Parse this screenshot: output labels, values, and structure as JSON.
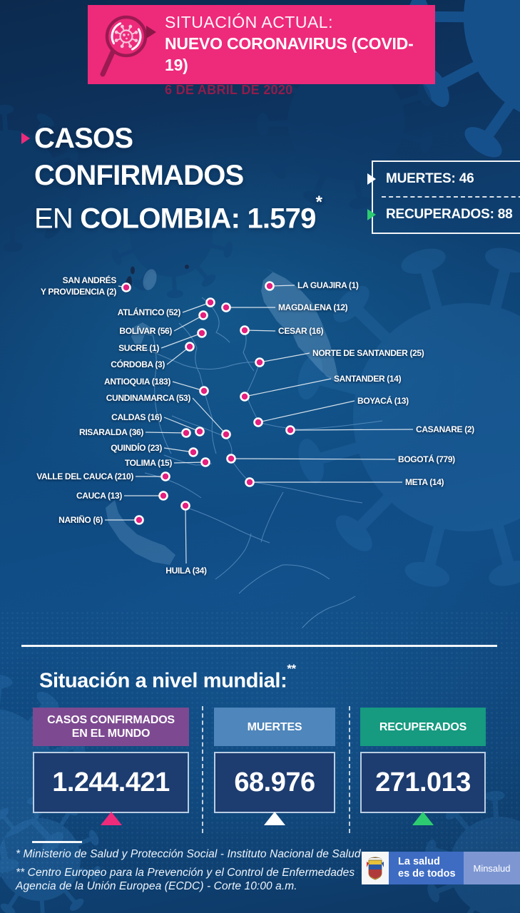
{
  "header": {
    "kicker": "SITUACIÓN ACTUAL:",
    "title": "NUEVO CORONAVIRUS (COVID-19)",
    "date": "6 DE ABRIL DE 2020"
  },
  "confirmed": {
    "line1": "CASOS",
    "line2": "CONFIRMADOS",
    "line3_prefix": "EN ",
    "line3_bold": "COLOMBIA: 1.579",
    "asterisk": "*"
  },
  "side_stats": {
    "deaths": "MUERTES: 46",
    "recovered": "RECUPERADOS: 88"
  },
  "map": {
    "country": "Colombia",
    "departments": [
      {
        "id": "san-andres-y-providencia",
        "name": "SAN ANDRÉS\nY PROVIDENCIA",
        "cases": 2,
        "dot": [
          177,
          403
        ],
        "label": [
          163,
          401
        ],
        "side": "left"
      },
      {
        "id": "la-guajira",
        "name": "LA GUAJIRA",
        "cases": 1,
        "dot": [
          378,
          401
        ],
        "label": [
          417,
          400
        ],
        "side": "right"
      },
      {
        "id": "atlantico",
        "name": "ATLÁNTICO",
        "cases": 52,
        "dot": [
          295,
          424
        ],
        "label": [
          253,
          438
        ],
        "side": "left"
      },
      {
        "id": "magdalena",
        "name": "MAGDALENA",
        "cases": 12,
        "dot": [
          317,
          431
        ],
        "label": [
          390,
          431
        ],
        "side": "right"
      },
      {
        "id": "bolivar",
        "name": "BOLÍVAR",
        "cases": 56,
        "dot": [
          285,
          442
        ],
        "label": [
          241,
          464
        ],
        "side": "left"
      },
      {
        "id": "cesar",
        "name": "CESAR",
        "cases": 16,
        "dot": [
          343,
          463
        ],
        "label": [
          390,
          464
        ],
        "side": "right"
      },
      {
        "id": "sucre",
        "name": "SUCRE",
        "cases": 1,
        "dot": [
          283,
          467
        ],
        "label": [
          223,
          488
        ],
        "side": "left"
      },
      {
        "id": "cordoba",
        "name": "CÓRDOBA",
        "cases": 3,
        "dot": [
          266,
          486
        ],
        "label": [
          231,
          511
        ],
        "side": "left"
      },
      {
        "id": "norte-de-santander",
        "name": "NORTE DE SANTANDER",
        "cases": 25,
        "dot": [
          364,
          508
        ],
        "label": [
          438,
          495
        ],
        "side": "right"
      },
      {
        "id": "antioquia",
        "name": "ANTIOQUIA",
        "cases": 183,
        "dot": [
          286,
          548
        ],
        "label": [
          239,
          535
        ],
        "side": "left"
      },
      {
        "id": "santander",
        "name": "SANTANDER",
        "cases": 14,
        "dot": [
          343,
          556
        ],
        "label": [
          468,
          531
        ],
        "side": "right"
      },
      {
        "id": "cundinamarca",
        "name": "CUNDINAMARCA",
        "cases": 53,
        "dot": [
          317,
          609
        ],
        "label": [
          267,
          558
        ],
        "side": "left"
      },
      {
        "id": "boyaca",
        "name": "BOYACÁ",
        "cases": 13,
        "dot": [
          362,
          592
        ],
        "label": [
          501,
          562
        ],
        "side": "right"
      },
      {
        "id": "caldas",
        "name": "CALDAS",
        "cases": 16,
        "dot": [
          280,
          605
        ],
        "label": [
          227,
          585
        ],
        "side": "left"
      },
      {
        "id": "risaralda",
        "name": "RISARALDA",
        "cases": 36,
        "dot": [
          261,
          607
        ],
        "label": [
          201,
          606
        ],
        "side": "left"
      },
      {
        "id": "casanare",
        "name": "CASANARE",
        "cases": 2,
        "dot": [
          407,
          603
        ],
        "label": [
          583,
          602
        ],
        "side": "right"
      },
      {
        "id": "quindio",
        "name": "QUINDÍO",
        "cases": 23,
        "dot": [
          271,
          634
        ],
        "label": [
          227,
          628
        ],
        "side": "left"
      },
      {
        "id": "bogota",
        "name": "BOGOTÁ",
        "cases": 779,
        "dot": [
          324,
          643
        ],
        "label": [
          558,
          644
        ],
        "side": "right"
      },
      {
        "id": "tolima",
        "name": "TOLIMA",
        "cases": 15,
        "dot": [
          288,
          648
        ],
        "label": [
          241,
          649
        ],
        "side": "left"
      },
      {
        "id": "valle-del-cauca",
        "name": "VALLE DEL CAUCA",
        "cases": 210,
        "dot": [
          232,
          668
        ],
        "label": [
          187,
          668
        ],
        "side": "left"
      },
      {
        "id": "meta",
        "name": "META",
        "cases": 14,
        "dot": [
          350,
          676
        ],
        "label": [
          568,
          676
        ],
        "side": "right"
      },
      {
        "id": "cauca",
        "name": "CAUCA",
        "cases": 13,
        "dot": [
          229,
          695
        ],
        "label": [
          171,
          695
        ],
        "side": "left"
      },
      {
        "id": "huila",
        "name": "HUILA",
        "cases": 34,
        "dot": [
          260,
          709
        ],
        "label": [
          261,
          800
        ],
        "side": "below"
      },
      {
        "id": "narino",
        "name": "NARIÑO",
        "cases": 6,
        "dot": [
          195,
          729
        ],
        "label": [
          144,
          729
        ],
        "side": "left"
      }
    ]
  },
  "world": {
    "title": "Situación a nivel mundial:",
    "superscript": "**",
    "cards": [
      {
        "label": "CASOS CONFIRMADOS\nEN EL MUNDO",
        "value": "1.244.421",
        "accent": "#7d4a91",
        "arrow": "#ee2a7b"
      },
      {
        "label": "MUERTES",
        "value": "68.976",
        "accent": "#4f86bb",
        "arrow": "#ffffff"
      },
      {
        "label": "RECUPERADOS",
        "value": "271.013",
        "accent": "#169a80",
        "arrow": "#2ecc71"
      }
    ]
  },
  "footer": {
    "note1": "* Ministerio de Salud y Protección Social - Instituto Nacional de Salud",
    "note2": "** Centro Europeo para la Prevención y el Control de Enfermedades\nAgencia de la Unión Europea (ECDC) - Corte 10:00 a.m.",
    "logo_tagline": "La salud\nes de todos",
    "logo_brand": "Minsalud"
  },
  "colors": {
    "banner_pink": "#ee2a7b",
    "date_maroon": "#8f1d4c",
    "background_navy": "#0d2f55",
    "map_navy": "#142a4c",
    "dot_pink": "#e41f7d",
    "recovered_green": "#2ecc71",
    "world_confirmed_accent": "#7d4a91",
    "world_deaths_accent": "#4f86bb",
    "world_recovered_accent": "#169a80",
    "logo_blue": "#3e6cc3",
    "logo_light_blue": "#7e97d3"
  }
}
